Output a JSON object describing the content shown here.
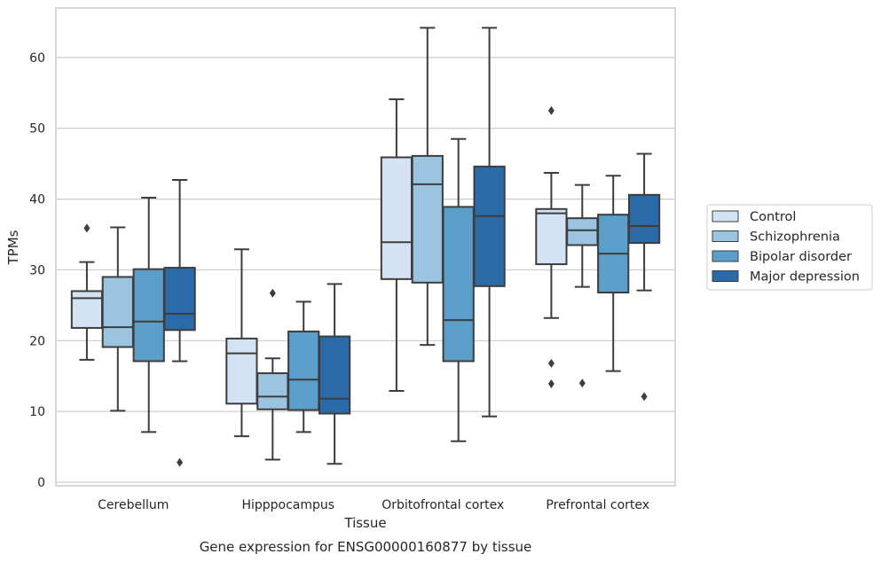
{
  "caption": "Gene expression for ENSG00000160877 by tissue",
  "chart_data": {
    "type": "boxplot",
    "xlabel": "Tissue",
    "ylabel": "TPMs",
    "ylim": [
      -0.5,
      67
    ],
    "yticks": [
      0,
      10,
      20,
      30,
      40,
      50,
      60
    ],
    "grid": true,
    "legend_position": "right",
    "categories": [
      "Cerebellum",
      "Hipppocampus",
      "Orbitofrontal cortex",
      "Prefrontal cortex"
    ],
    "series": [
      {
        "name": "Control",
        "color": "#d3e3f3",
        "boxes": [
          {
            "whisker_low": 17.3,
            "q1": 21.8,
            "median": 26.0,
            "q3": 27.0,
            "whisker_high": 31.1,
            "outliers": [
              35.9
            ]
          },
          {
            "whisker_low": 6.5,
            "q1": 11.1,
            "median": 18.2,
            "q3": 20.3,
            "whisker_high": 32.9,
            "outliers": []
          },
          {
            "whisker_low": 12.9,
            "q1": 28.7,
            "median": 33.9,
            "q3": 45.9,
            "whisker_high": 54.1,
            "outliers": []
          },
          {
            "whisker_low": 23.2,
            "q1": 30.8,
            "median": 38.0,
            "q3": 38.6,
            "whisker_high": 43.7,
            "outliers": [
              52.5,
              16.8,
              13.9
            ]
          }
        ]
      },
      {
        "name": "Schizophrenia",
        "color": "#9ac4e0",
        "boxes": [
          {
            "whisker_low": 10.1,
            "q1": 19.1,
            "median": 21.9,
            "q3": 29.0,
            "whisker_high": 36.0,
            "outliers": []
          },
          {
            "whisker_low": 3.2,
            "q1": 10.3,
            "median": 12.1,
            "q3": 15.4,
            "whisker_high": 17.5,
            "outliers": [
              26.7
            ]
          },
          {
            "whisker_low": 19.4,
            "q1": 28.2,
            "median": 42.1,
            "q3": 46.1,
            "whisker_high": 64.2,
            "outliers": []
          },
          {
            "whisker_low": 27.6,
            "q1": 33.5,
            "median": 35.6,
            "q3": 37.3,
            "whisker_high": 42.0,
            "outliers": [
              14.0
            ]
          }
        ]
      },
      {
        "name": "Bipolar disorder",
        "color": "#5a9ec9",
        "boxes": [
          {
            "whisker_low": 7.1,
            "q1": 17.1,
            "median": 22.7,
            "q3": 30.1,
            "whisker_high": 40.2,
            "outliers": []
          },
          {
            "whisker_low": 7.1,
            "q1": 10.2,
            "median": 14.5,
            "q3": 21.3,
            "whisker_high": 25.5,
            "outliers": []
          },
          {
            "whisker_low": 5.8,
            "q1": 17.1,
            "median": 22.9,
            "q3": 38.9,
            "whisker_high": 48.5,
            "outliers": []
          },
          {
            "whisker_low": 15.7,
            "q1": 26.8,
            "median": 32.3,
            "q3": 37.8,
            "whisker_high": 43.3,
            "outliers": []
          }
        ]
      },
      {
        "name": "Major depression",
        "color": "#2b6aa8",
        "boxes": [
          {
            "whisker_low": 17.1,
            "q1": 21.5,
            "median": 23.8,
            "q3": 30.3,
            "whisker_high": 42.7,
            "outliers": [
              2.8
            ]
          },
          {
            "whisker_low": 2.6,
            "q1": 9.7,
            "median": 11.8,
            "q3": 20.6,
            "whisker_high": 28.0,
            "outliers": []
          },
          {
            "whisker_low": 9.3,
            "q1": 27.7,
            "median": 37.6,
            "q3": 44.6,
            "whisker_high": 64.2,
            "outliers": []
          },
          {
            "whisker_low": 27.1,
            "q1": 33.8,
            "median": 36.2,
            "q3": 40.6,
            "whisker_high": 46.4,
            "outliers": [
              12.1
            ]
          }
        ]
      }
    ]
  }
}
